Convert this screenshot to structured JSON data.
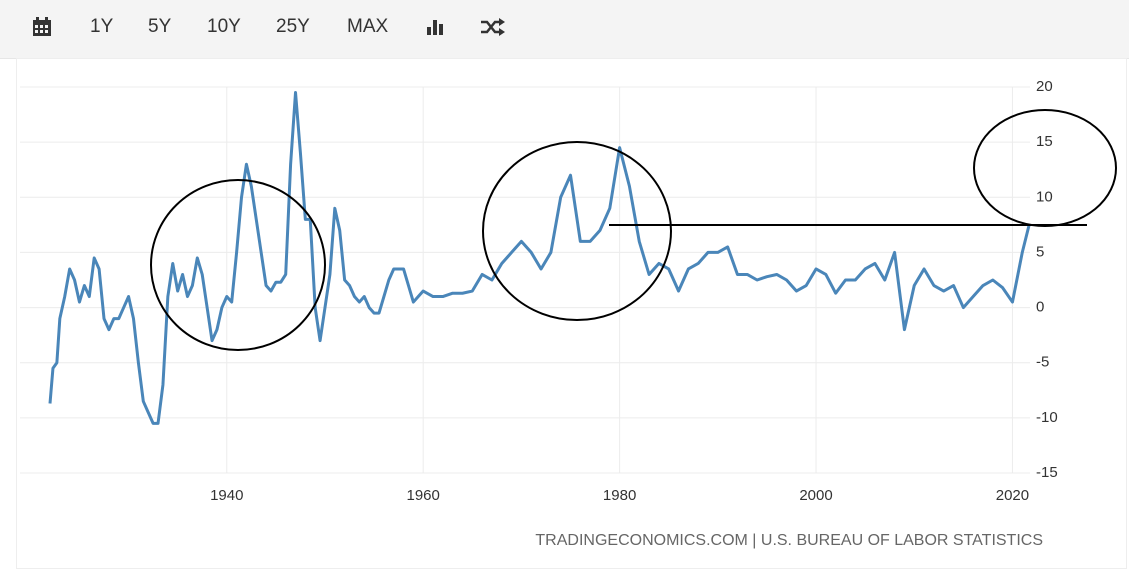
{
  "toolbar": {
    "buttons": [
      "1Y",
      "5Y",
      "10Y",
      "25Y",
      "MAX"
    ]
  },
  "chart_data": {
    "type": "line",
    "source": "TRADINGECONOMICS.COM | U.S. BUREAU OF LABOR STATISTICS",
    "x": [
      1922.0,
      1922.3,
      1922.7,
      1923.0,
      1923.5,
      1924.0,
      1924.5,
      1925.0,
      1925.5,
      1926.0,
      1926.5,
      1927.0,
      1927.5,
      1928.0,
      1928.5,
      1929.0,
      1929.5,
      1930.0,
      1930.5,
      1931.0,
      1931.5,
      1932.0,
      1932.5,
      1933.0,
      1933.5,
      1934.0,
      1934.5,
      1935.0,
      1935.5,
      1936.0,
      1936.5,
      1937.0,
      1937.5,
      1938.0,
      1938.5,
      1939.0,
      1939.5,
      1940.0,
      1940.5,
      1941.0,
      1941.5,
      1942.0,
      1942.5,
      1943.0,
      1943.5,
      1944.0,
      1944.5,
      1945.0,
      1945.5,
      1946.0,
      1946.5,
      1947.0,
      1947.5,
      1948.0,
      1948.5,
      1949.0,
      1949.5,
      1950.0,
      1950.5,
      1951.0,
      1951.5,
      1952.0,
      1952.5,
      1953.0,
      1953.5,
      1954.0,
      1954.5,
      1955.0,
      1955.5,
      1956.0,
      1956.5,
      1957.0,
      1957.5,
      1958.0,
      1958.5,
      1959.0,
      1959.5,
      1960.0,
      1961.0,
      1962.0,
      1963.0,
      1964.0,
      1965.0,
      1966.0,
      1967.0,
      1968.0,
      1969.0,
      1970.0,
      1971.0,
      1972.0,
      1973.0,
      1974.0,
      1975.0,
      1975.5,
      1976.0,
      1977.0,
      1978.0,
      1979.0,
      1980.0,
      1981.0,
      1982.0,
      1983.0,
      1984.0,
      1985.0,
      1986.0,
      1987.0,
      1988.0,
      1989.0,
      1990.0,
      1991.0,
      1992.0,
      1993.0,
      1994.0,
      1995.0,
      1996.0,
      1997.0,
      1998.0,
      1999.0,
      2000.0,
      2001.0,
      2002.0,
      2003.0,
      2004.0,
      2005.0,
      2006.0,
      2007.0,
      2008.0,
      2009.0,
      2010.0,
      2011.0,
      2012.0,
      2013.0,
      2014.0,
      2015.0,
      2016.0,
      2017.0,
      2018.0,
      2019.0,
      2020.0,
      2021.0,
      2021.7
    ],
    "series": [
      {
        "color": "#4a86b9",
        "values": [
          -8.7,
          -5.5,
          -5,
          -1,
          1,
          3.5,
          2.5,
          0.5,
          2,
          1,
          4.5,
          3.5,
          -1,
          -2,
          -1,
          -1,
          0,
          1,
          -1,
          -5,
          -8.5,
          -9.5,
          -10.5,
          -10.5,
          -7,
          1,
          4,
          1.5,
          3,
          1,
          2,
          4.5,
          3,
          0,
          -3,
          -2,
          0,
          1,
          0.5,
          5,
          10,
          13,
          11,
          8,
          5,
          2,
          1.5,
          2.3,
          2.3,
          3,
          13,
          19.5,
          14,
          8,
          8,
          0,
          -3,
          0,
          3,
          9,
          7,
          2.5,
          2,
          1,
          0.5,
          1,
          0,
          -0.5,
          -0.5,
          1,
          2.5,
          3.5,
          3.5,
          3.5,
          2,
          0.5,
          1,
          1.5,
          1,
          1,
          1.3,
          1.3,
          1.5,
          3,
          2.5,
          4,
          5,
          6,
          5,
          3.5,
          5,
          10,
          12,
          9,
          6,
          6,
          7,
          9,
          14.5,
          11,
          6,
          3,
          4,
          3.5,
          1.5,
          3.5,
          4,
          5,
          5,
          5.5,
          3,
          3,
          2.5,
          2.8,
          3,
          2.5,
          1.5,
          2,
          3.5,
          3,
          1.3,
          2.5,
          2.5,
          3.5,
          4,
          2.5,
          5,
          -2,
          2,
          3.5,
          2,
          1.5,
          2,
          0,
          1,
          2,
          2.5,
          1.8,
          0.5,
          5,
          7.5
        ]
      }
    ],
    "xlim": [
      1922,
      2022.5
    ],
    "xticks": [
      1940,
      1960,
      1980,
      2000,
      2020
    ],
    "ylim": [
      -15,
      20
    ],
    "yticks": [
      -15,
      -10,
      -5,
      0,
      5,
      10,
      15,
      20
    ],
    "grid": true
  }
}
